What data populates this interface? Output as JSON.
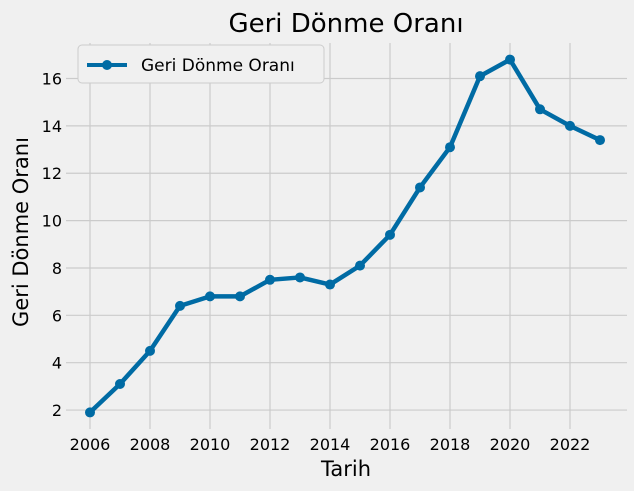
{
  "chart_data": {
    "type": "line",
    "title": "Geri Dönme Oranı",
    "xlabel": "Tarih",
    "ylabel": "Geri Dönme Oranı",
    "x": [
      2006,
      2007,
      2008,
      2009,
      2010,
      2011,
      2012,
      2013,
      2014,
      2015,
      2016,
      2017,
      2018,
      2019,
      2020,
      2021,
      2022,
      2023
    ],
    "series": [
      {
        "name": "Geri Dönme Oranı",
        "color": "#006ba4",
        "values": [
          1.9,
          3.1,
          4.5,
          6.4,
          6.8,
          6.8,
          7.5,
          7.6,
          7.3,
          8.1,
          9.4,
          11.4,
          13.1,
          16.1,
          16.8,
          14.7,
          14.0,
          13.4
        ]
      }
    ],
    "xticks": [
      "2006",
      "2008",
      "2010",
      "2012",
      "2014",
      "2016",
      "2018",
      "2020",
      "2022"
    ],
    "yticks": [
      "2",
      "4",
      "6",
      "8",
      "10",
      "12",
      "14",
      "16"
    ],
    "xlim": [
      2005.2,
      2023.9
    ],
    "ylim": [
      1.2,
      17.5
    ],
    "grid": true,
    "legend_position": "top-left"
  }
}
